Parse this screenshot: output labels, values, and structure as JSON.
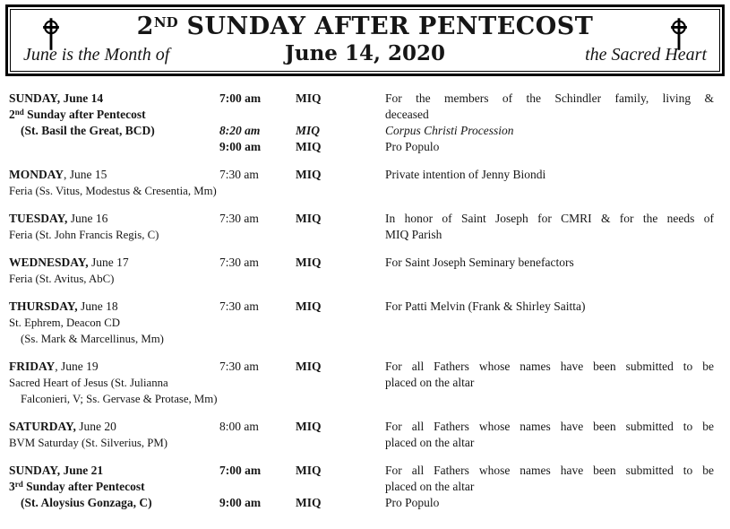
{
  "header": {
    "title_pre": "2",
    "title_sup": "ND",
    "title_post": " SUNDAY AFTER PENTECOST",
    "subtitle_left": "June is the Month of",
    "subtitle_center": "June 14, 2020",
    "subtitle_right": "the Sacred Heart",
    "left_icon": "celtic-cross-icon",
    "right_icon": "celtic-cross-icon",
    "border_color": "#000000"
  },
  "schedule": [
    {
      "lines": [
        {
          "day": [
            {
              "t": "SUNDAY, June 14",
              "b": true
            }
          ],
          "time": "7:00 am",
          "ts": "b",
          "loc": "MIQ",
          "ls": "b",
          "int": "For the members of the Schindler family, living &",
          "ij": true
        },
        {
          "day": [
            {
              "t": "2",
              "b": true
            },
            {
              "t": "nd",
              "b": true,
              "sup": true
            },
            {
              "t": " Sunday after Pentecost",
              "b": true
            }
          ],
          "int": "deceased"
        },
        {
          "day": [
            {
              "t": "(St. Basil the Great, BCD)",
              "b": true
            }
          ],
          "dc": "indent",
          "time": "8:20 am",
          "ts": "bi",
          "loc": "MIQ",
          "ls": "bi",
          "int": "Corpus Christi Procession",
          "ii": true
        },
        {
          "time": "9:00 am",
          "ts": "b",
          "loc": "MIQ",
          "ls": "b",
          "int": "Pro Populo"
        }
      ]
    },
    {
      "lines": [
        {
          "day": [
            {
              "t": "MONDAY",
              "b": true
            },
            {
              "t": ", June 15"
            }
          ],
          "time": "7:30 am",
          "loc": "MIQ",
          "ls": "b",
          "int": "Private intention of Jenny Biondi"
        },
        {
          "day": [
            {
              "t": "Feria (Ss. Vitus, Modestus & Cresentia, Mm)"
            }
          ],
          "dc": "small"
        }
      ]
    },
    {
      "lines": [
        {
          "day": [
            {
              "t": "TUESDAY,",
              "b": true
            },
            {
              "t": " June 16"
            }
          ],
          "time": "7:30 am",
          "loc": "MIQ",
          "ls": "b",
          "int": "In honor of Saint Joseph for CMRI & for the needs of",
          "ij": true
        },
        {
          "day": [
            {
              "t": "Feria (St. John Francis Regis, C)"
            }
          ],
          "dc": "small",
          "int": "MIQ Parish"
        }
      ]
    },
    {
      "lines": [
        {
          "day": [
            {
              "t": "WEDNESDAY,",
              "b": true
            },
            {
              "t": " June 17"
            }
          ],
          "time": "7:30 am",
          "loc": "MIQ",
          "ls": "b",
          "int": "For Saint Joseph Seminary benefactors"
        },
        {
          "day": [
            {
              "t": "Feria (St. Avitus, AbC)"
            }
          ],
          "dc": "small"
        }
      ]
    },
    {
      "lines": [
        {
          "day": [
            {
              "t": "THURSDAY,",
              "b": true
            },
            {
              "t": " June 18"
            }
          ],
          "time": "7:30 am",
          "loc": "MIQ",
          "ls": "b",
          "int": "For Patti Melvin (Frank & Shirley Saitta)"
        },
        {
          "day": [
            {
              "t": "St. Ephrem, Deacon CD"
            }
          ],
          "dc": "small"
        },
        {
          "day": [
            {
              "t": "(Ss. Mark & Marcellinus, Mm)"
            }
          ],
          "dc": "small indent"
        }
      ]
    },
    {
      "lines": [
        {
          "day": [
            {
              "t": "FRIDAY",
              "b": true
            },
            {
              "t": ", June 19"
            }
          ],
          "time": "7:30 am",
          "loc": "MIQ",
          "ls": "b",
          "int": "For all Fathers whose names have been submitted to be",
          "ij": true
        },
        {
          "day": [
            {
              "t": "Sacred Heart of Jesus (St. Julianna"
            }
          ],
          "dc": "small",
          "int": "placed on the altar"
        },
        {
          "day": [
            {
              "t": "Falconieri, V; Ss. Gervase & Protase, Mm)"
            }
          ],
          "dc": "small indent"
        }
      ]
    },
    {
      "lines": [
        {
          "day": [
            {
              "t": "SATURDAY,",
              "b": true
            },
            {
              "t": " June 20"
            }
          ],
          "time": "8:00 am",
          "loc": "MIQ",
          "ls": "b",
          "int": "For all Fathers whose names have been submitted to be",
          "ij": true
        },
        {
          "day": [
            {
              "t": "BVM Saturday (St. Silverius, PM)"
            }
          ],
          "dc": "small",
          "int": "placed on the altar"
        }
      ]
    },
    {
      "lines": [
        {
          "day": [
            {
              "t": "SUNDAY, June 21",
              "b": true
            }
          ],
          "time": "7:00 am",
          "ts": "b",
          "loc": "MIQ",
          "ls": "b",
          "int": "For all Fathers whose names have been submitted to be",
          "ij": true
        },
        {
          "day": [
            {
              "t": "3",
              "b": true
            },
            {
              "t": "rd",
              "b": true,
              "sup": true
            },
            {
              "t": " Sunday after Pentecost",
              "b": true
            }
          ],
          "int": "placed on the altar"
        },
        {
          "day": [
            {
              "t": "(St. Aloysius Gonzaga, C)",
              "b": true
            }
          ],
          "dc": "indent",
          "time": "9:00 am",
          "ts": "b",
          "loc": "MIQ",
          "ls": "b",
          "int": "Pro Populo"
        }
      ]
    }
  ]
}
